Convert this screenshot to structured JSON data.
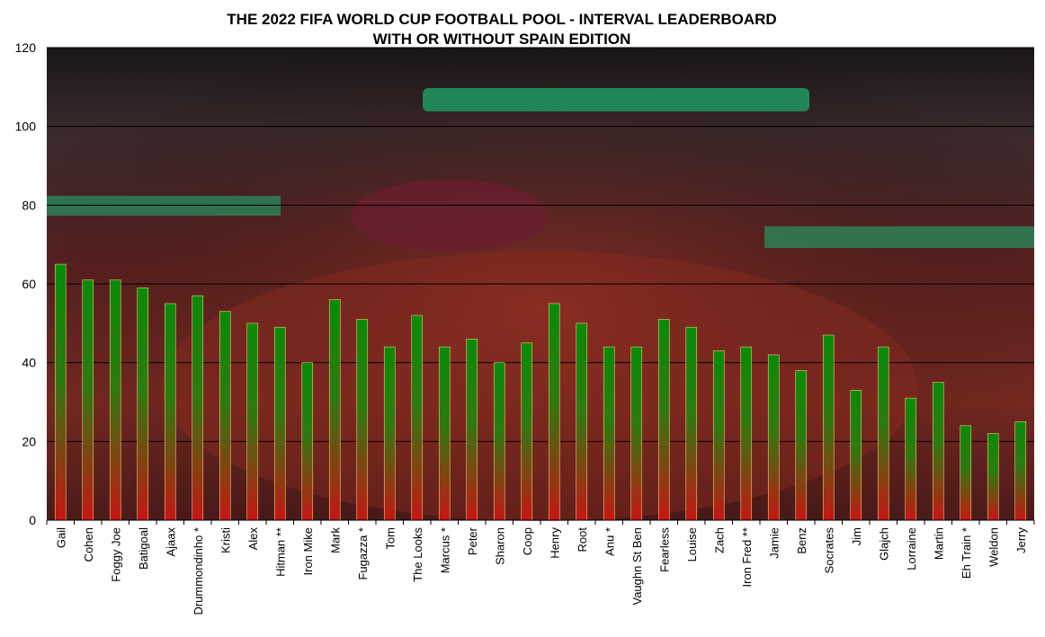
{
  "chart_data": {
    "type": "bar",
    "title": "THE 2022 FIFA WORLD CUP FOOTBALL POOL - INTERVAL LEADERBOARD",
    "subtitle": "WITH OR WITHOUT SPAIN EDITION",
    "xlabel": "",
    "ylabel": "",
    "ylim": [
      0,
      120
    ],
    "yticks": [
      "0",
      "20",
      "40",
      "60",
      "80",
      "100",
      "120"
    ],
    "grid": true,
    "legend": "none",
    "background": "photo of a football team tossing its goalkeeper in celebration",
    "bar_color_top": "#0a8a0a",
    "bar_color_bottom": "#c81414",
    "categories": [
      "Gail",
      "Cohen",
      "Foggy Joe",
      "Batigoal",
      "Ajaax",
      "Drummondinho *",
      "Kristi",
      "Alex",
      "Hitman **",
      "Iron Mike",
      "Mark",
      "Fugazza *",
      "Tom",
      "The Looks",
      "Marcus *",
      "Peter",
      "Sharon",
      "Coop",
      "Henry",
      "Root",
      "Anu *",
      "Vaughn St Ben",
      "Fearless",
      "Louise",
      "Zach",
      "Iron Fred **",
      "Jamie",
      "Benz",
      "Socrates",
      "Jim",
      "Glajch",
      "Lorraine",
      "Martin",
      "Eh Train *",
      "Weldon",
      "Jerry"
    ],
    "values": [
      65,
      61,
      61,
      59,
      55,
      57,
      53,
      50,
      49,
      40,
      56,
      51,
      44,
      52,
      44,
      46,
      40,
      45,
      55,
      50,
      44,
      44,
      51,
      49,
      43,
      44,
      42,
      38,
      47,
      33,
      44,
      31,
      35,
      24,
      22,
      25
    ]
  }
}
